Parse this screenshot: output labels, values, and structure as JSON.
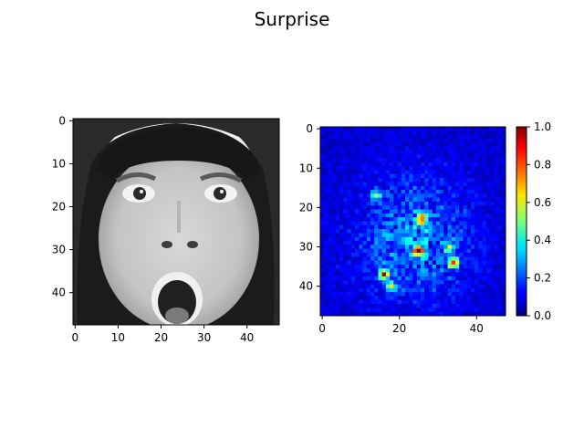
{
  "title": "Surprise",
  "chart_data": [
    {
      "type": "heatmap",
      "name": "face-image",
      "grid": [
        48,
        48
      ],
      "colormap": "gray",
      "xlim": [
        0,
        47
      ],
      "ylim": [
        47,
        0
      ],
      "xticks": [
        0,
        10,
        20,
        30,
        40
      ],
      "yticks": [
        0,
        10,
        20,
        30,
        40
      ],
      "xticklabels": [
        "0",
        "10",
        "20",
        "30",
        "40"
      ],
      "yticklabels": [
        "0",
        "10",
        "20",
        "30",
        "40"
      ]
    },
    {
      "type": "heatmap",
      "name": "saliency-map",
      "grid": [
        48,
        48
      ],
      "colormap": "jet",
      "xlim": [
        0,
        47
      ],
      "ylim": [
        47,
        0
      ],
      "xticks": [
        0,
        20,
        40
      ],
      "yticks": [
        0,
        10,
        20,
        30,
        40
      ],
      "xticklabels": [
        "0",
        "20",
        "40"
      ],
      "yticklabels": [
        "0",
        "10",
        "20",
        "30",
        "40"
      ],
      "hotspots": [
        {
          "x": 26,
          "y": 23,
          "value": 0.9
        },
        {
          "x": 25,
          "y": 31,
          "value": 0.85
        },
        {
          "x": 34,
          "y": 34,
          "value": 0.85
        },
        {
          "x": 16,
          "y": 37,
          "value": 0.8
        },
        {
          "x": 14,
          "y": 17,
          "value": 0.5
        },
        {
          "x": 33,
          "y": 30,
          "value": 0.55
        },
        {
          "x": 18,
          "y": 40,
          "value": 0.55
        }
      ],
      "colorbar": {
        "range": [
          0.0,
          1.0
        ],
        "ticks": [
          0.0,
          0.2,
          0.4,
          0.6,
          0.8,
          1.0
        ],
        "ticklabels": [
          "0.0",
          "0.2",
          "0.4",
          "0.6",
          "0.8",
          "1.0"
        ]
      }
    }
  ]
}
